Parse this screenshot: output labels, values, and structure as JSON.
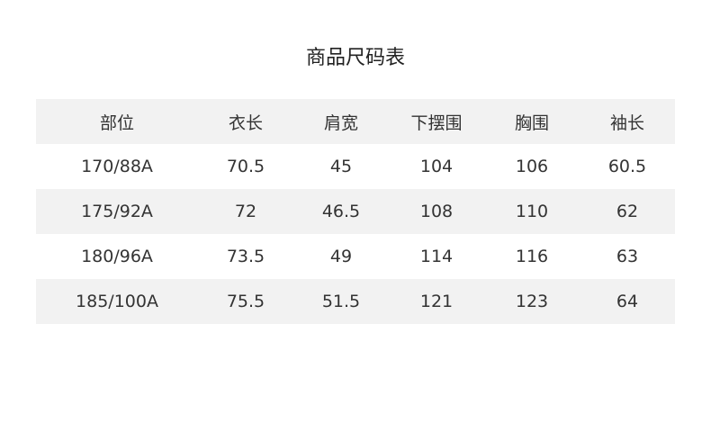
{
  "title": "商品尺码表",
  "table": {
    "headers": [
      "部位",
      "衣长",
      "肩宽",
      "下摆围",
      "胸围",
      "袖长"
    ],
    "rows": [
      [
        "170/88A",
        "70.5",
        "45",
        "104",
        "106",
        "60.5"
      ],
      [
        "175/92A",
        "72",
        "46.5",
        "108",
        "110",
        "62"
      ],
      [
        "180/96A",
        "73.5",
        "49",
        "114",
        "116",
        "63"
      ],
      [
        "185/100A",
        "75.5",
        "51.5",
        "121",
        "123",
        "64"
      ]
    ]
  },
  "colors": {
    "row_shade": "#f2f2f2",
    "text": "#333333"
  }
}
